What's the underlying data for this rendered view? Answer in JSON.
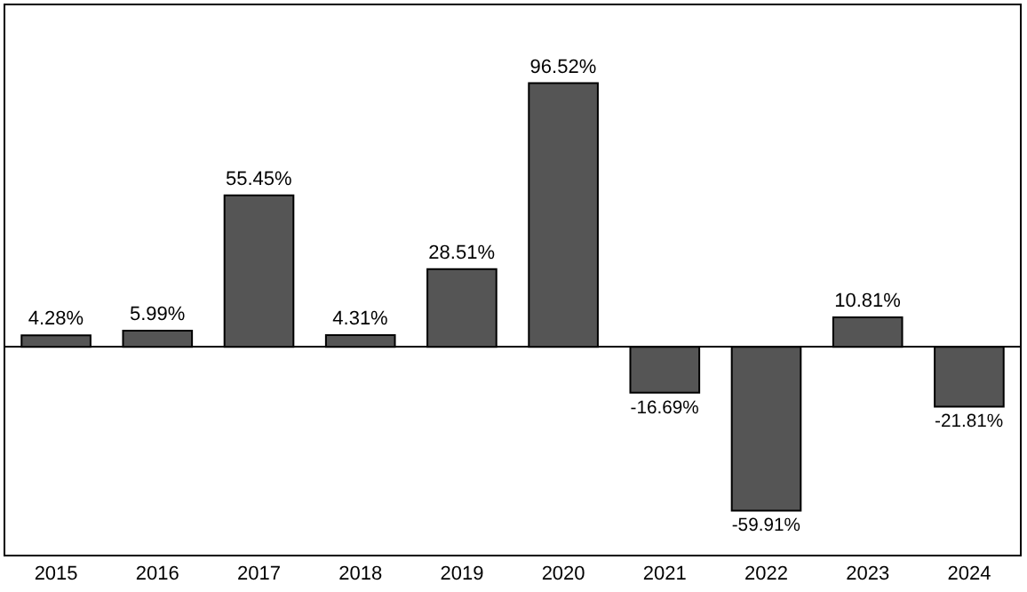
{
  "chart_data": {
    "type": "bar",
    "categories": [
      "2015",
      "2016",
      "2017",
      "2018",
      "2019",
      "2020",
      "2021",
      "2022",
      "2023",
      "2024"
    ],
    "values": [
      4.28,
      5.99,
      55.45,
      4.31,
      28.51,
      96.52,
      -16.69,
      -59.91,
      10.81,
      -21.81
    ],
    "value_labels": [
      "4.28%",
      "5.99%",
      "55.45%",
      "4.31%",
      "28.51%",
      "96.52%",
      "-16.69%",
      "-59.91%",
      "10.81%",
      "-21.81%"
    ],
    "color": "#555555",
    "ylim": [
      -76,
      125
    ],
    "grid": false,
    "legend": false
  }
}
